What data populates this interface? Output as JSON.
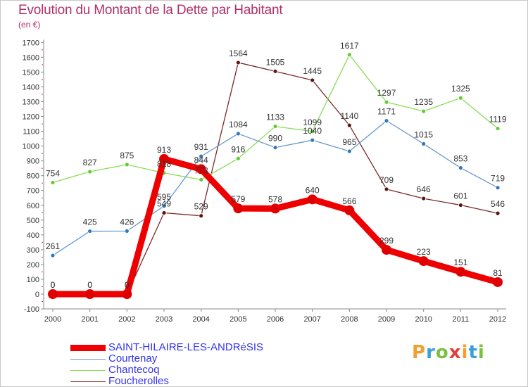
{
  "title": "Evolution du Montant de la Dette par Habitant",
  "unit_label": "(en €)",
  "brand": {
    "text": "Proxiti",
    "letters": [
      "P",
      "r",
      "o",
      "x",
      "i",
      "t",
      "i"
    ],
    "colors": [
      "#f0a030",
      "#3aa0d8",
      "#7cc040",
      "#e0403a",
      "#f0a030",
      "#3aa0d8",
      "#7cc040"
    ]
  },
  "chart_data": {
    "type": "line",
    "title": "Evolution du Montant de la Dette par Habitant",
    "ylabel": "(en €)",
    "xlabel": "",
    "categories": [
      "2000",
      "2001",
      "2002",
      "2003",
      "2004",
      "2005",
      "2006",
      "2007",
      "2008",
      "2009",
      "2010",
      "2011",
      "2012"
    ],
    "ylim": [
      -100,
      1700
    ],
    "yticks": [
      -100,
      0,
      100,
      200,
      300,
      400,
      500,
      600,
      700,
      800,
      900,
      1000,
      1100,
      1200,
      1300,
      1400,
      1500,
      1600,
      1700
    ],
    "grid": false,
    "legend_position": "bottom-left",
    "series": [
      {
        "name": "Foucherolles",
        "color": "#7a2a2a",
        "marker": "#5a1515",
        "values": [
          0,
          0,
          0,
          549,
          529,
          1564,
          1505,
          1445,
          1140,
          709,
          646,
          601,
          546
        ]
      },
      {
        "name": "Chantecoq",
        "color": "#88dd55",
        "marker": "#66cc33",
        "values": [
          754,
          827,
          875,
          818,
          773,
          916,
          1133,
          1099,
          1617,
          1297,
          1235,
          1325,
          1119
        ]
      },
      {
        "name": "Courtenay",
        "color": "#6699cc",
        "marker": "#3377bb",
        "values": [
          261,
          425,
          426,
          595,
          931,
          1084,
          990,
          1040,
          965,
          1171,
          1015,
          853,
          719
        ]
      },
      {
        "name": "SAINT-HILAIRE-LES-ANDRéSIS",
        "color": "#ee0000",
        "marker": "#dd0000",
        "values": [
          0,
          0,
          0,
          913,
          844,
          579,
          578,
          640,
          566,
          299,
          223,
          151,
          81
        ]
      }
    ],
    "labels": {
      "Foucherolles": [
        "0",
        "0",
        "0",
        "549",
        "529",
        "1564",
        "1505",
        "1445",
        "1140",
        "709",
        "646",
        "601",
        "546"
      ],
      "Chantecoq": [
        "754",
        "827",
        "875",
        "818",
        "773",
        "916",
        "1133",
        "1099",
        "1617",
        "1297",
        "1235",
        "1325",
        "1119"
      ],
      "Courtenay": [
        "261",
        "425",
        "426",
        "595",
        "931",
        "1084",
        "990",
        "1040",
        "965",
        "1171",
        "1015",
        "853",
        "719"
      ],
      "SAINT-HILAIRE-LES-ANDRéSIS": [
        "0",
        "0",
        "0",
        "913",
        "844",
        "579",
        "578",
        "640",
        "566",
        "299",
        "223",
        "151",
        "81"
      ]
    },
    "legend_order": [
      "SAINT-HILAIRE-LES-ANDRéSIS",
      "Courtenay",
      "Chantecoq",
      "Foucherolles"
    ]
  }
}
